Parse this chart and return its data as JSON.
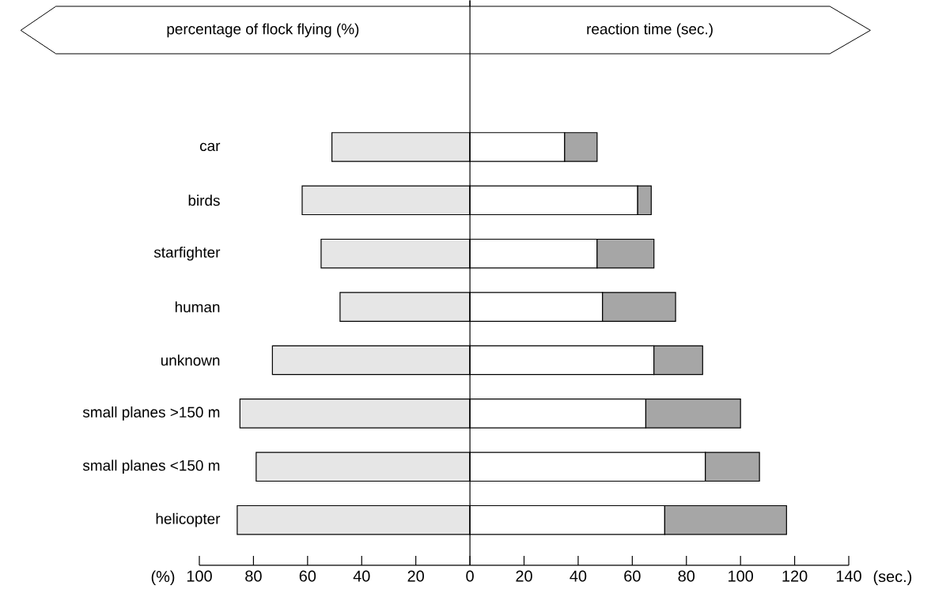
{
  "chart_data": {
    "type": "bar",
    "orientation": "horizontal",
    "stacked": true,
    "categories": [
      "car",
      "birds",
      "starfighter",
      "human",
      "unknown",
      "small planes >150 m",
      "small planes <150 m",
      "helicopter"
    ],
    "series": [
      {
        "color": "#e6e6e6",
        "values": [
          -51,
          -62,
          -55,
          -48,
          -73,
          -85,
          -79,
          -86
        ]
      },
      {
        "color": "#ffffff",
        "values": [
          35,
          62,
          47,
          49,
          68,
          65,
          87,
          72
        ]
      },
      {
        "color": "#a6a6a6",
        "values": [
          12,
          5,
          21,
          27,
          18,
          35,
          20,
          45
        ]
      }
    ],
    "xlim": [
      -100,
      140
    ],
    "xticks": [
      {
        "value": -100,
        "label": "100"
      },
      {
        "value": -80,
        "label": "80"
      },
      {
        "value": -60,
        "label": "60"
      },
      {
        "value": -40,
        "label": "40"
      },
      {
        "value": -20,
        "label": "20"
      },
      0,
      20,
      40,
      60,
      80,
      100,
      120,
      140
    ],
    "annotations": [
      "percentage of flock flying (%)",
      "reaction time (sec.)",
      "(%)",
      "(sec.)"
    ]
  }
}
